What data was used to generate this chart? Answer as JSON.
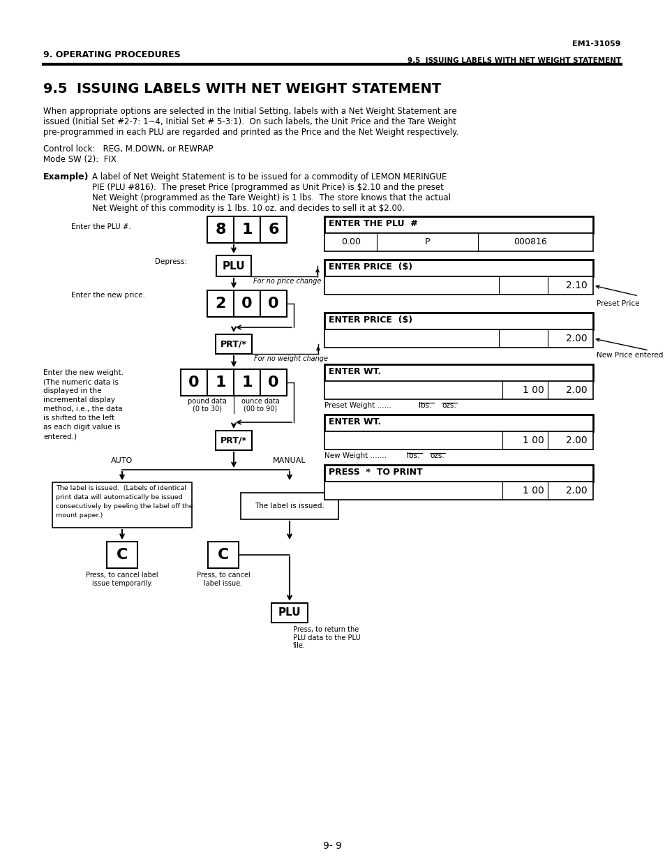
{
  "title_top_right": "EM1-31059",
  "header_left": "9. OPERATING PROCEDURES",
  "header_right": "9.5  ISSUING LABELS WITH NET WEIGHT STATEMENT",
  "section_title": "9.5  ISSUING LABELS WITH NET WEIGHT STATEMENT",
  "para1_lines": [
    "When appropriate options are selected in the Initial Setting, labels with a Net Weight Statement are",
    "issued (Initial Set #2-7: 1~4, Initial Set # 5-3:1).  On such labels, the Unit Price and the Tare Weight",
    "pre-programmed in each PLU are regarded and printed as the Price and the Net Weight respectively."
  ],
  "control_lock": "Control lock:   REG, M.DOWN, or REWRAP",
  "mode_sw": "Mode SW (2):  FIX",
  "example_lines": [
    "A label of Net Weight Statement is to be issued for a commodity of LEMON MERINGUE",
    "PIE (PLU #816).  The preset Price (programmed as Unit Price) is $2.10 and the preset",
    "Net Weight (programmed as the Tare Weight) is 1 lbs.  The store knows that the actual",
    "Net Weight of this commodity is 1 lbs. 10 oz. and decides to sell it at $2.00."
  ],
  "bg_color": "#ffffff",
  "page_number": "9- 9"
}
